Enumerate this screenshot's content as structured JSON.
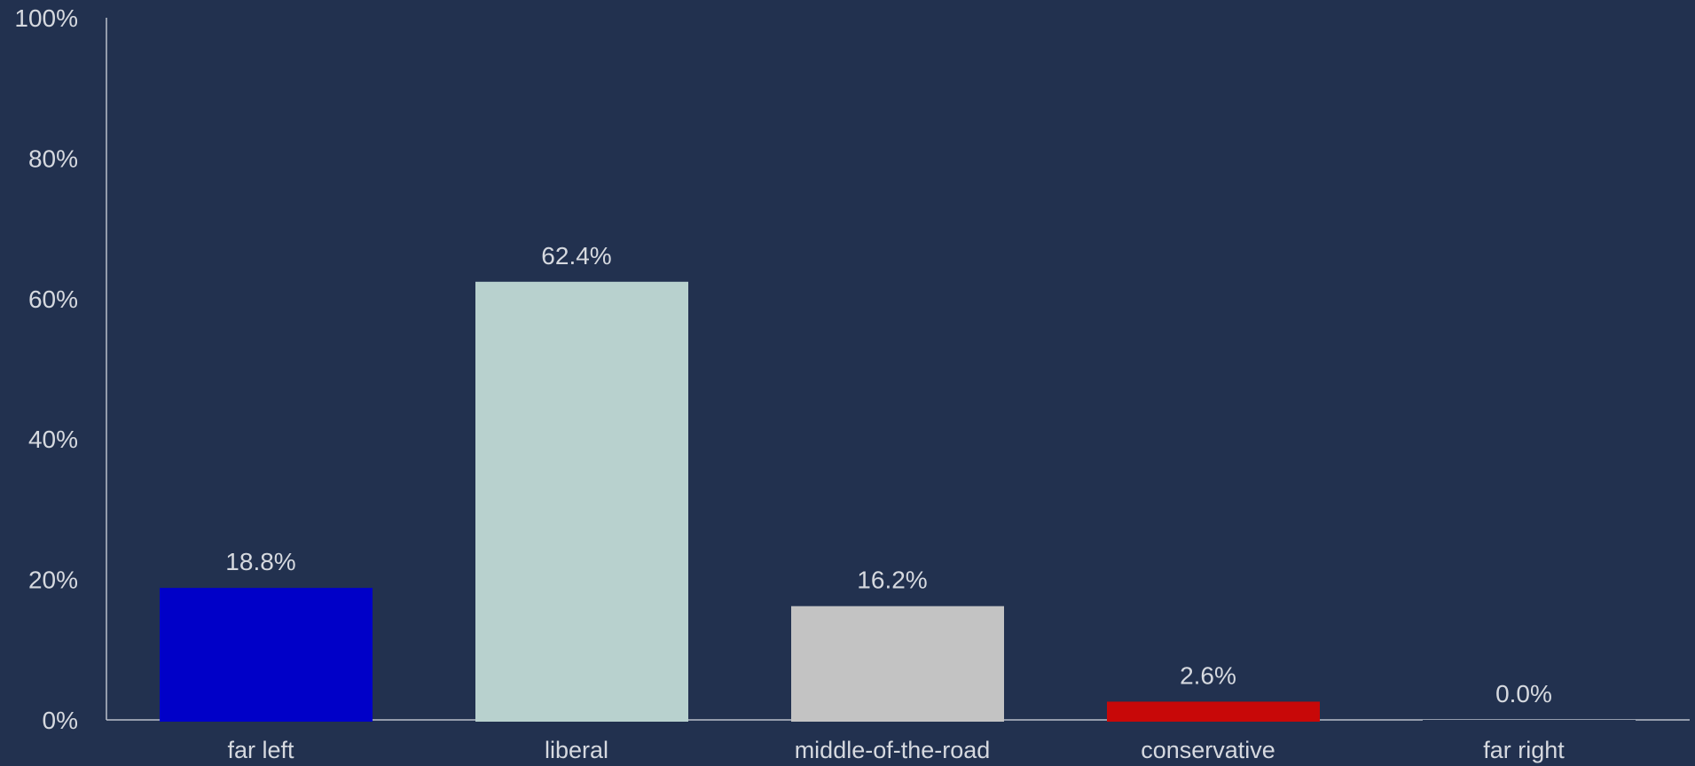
{
  "chart_data": {
    "type": "bar",
    "title": "",
    "xlabel": "",
    "ylabel": "",
    "categories": [
      "far left",
      "liberal",
      "middle-of-the-road",
      "conservative",
      "far right"
    ],
    "values": [
      18.8,
      62.4,
      16.2,
      2.6,
      0.0
    ],
    "value_labels": [
      "18.8%",
      "62.4%",
      "16.2%",
      "2.6%",
      "0.0%"
    ],
    "bar_colors": [
      "#0000c8",
      "#b8d1ce",
      "#c3c3c3",
      "#c80808",
      "#22314f"
    ],
    "ylim": [
      0,
      100
    ],
    "yticks": [
      0,
      20,
      40,
      60,
      80,
      100
    ],
    "ytick_labels": [
      "0%",
      "20%",
      "40%",
      "60%",
      "80%",
      "100%"
    ],
    "grid": false,
    "legend": "none",
    "background": "#22314f",
    "text_color": "#d6d9df"
  }
}
